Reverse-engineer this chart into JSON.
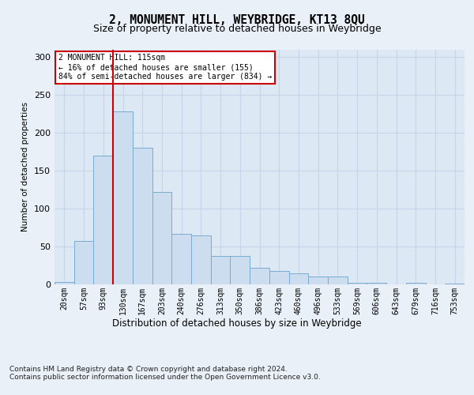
{
  "title": "2, MONUMENT HILL, WEYBRIDGE, KT13 8QU",
  "subtitle": "Size of property relative to detached houses in Weybridge",
  "xlabel": "Distribution of detached houses by size in Weybridge",
  "ylabel": "Number of detached properties",
  "bar_labels": [
    "20sqm",
    "57sqm",
    "93sqm",
    "130sqm",
    "167sqm",
    "203sqm",
    "240sqm",
    "276sqm",
    "313sqm",
    "350sqm",
    "386sqm",
    "423sqm",
    "460sqm",
    "496sqm",
    "533sqm",
    "569sqm",
    "606sqm",
    "643sqm",
    "679sqm",
    "716sqm",
    "753sqm"
  ],
  "bar_values": [
    3,
    57,
    170,
    228,
    180,
    122,
    67,
    65,
    38,
    38,
    22,
    18,
    15,
    10,
    10,
    2,
    2,
    0,
    2,
    0,
    1
  ],
  "bar_color": "#ccddf0",
  "bar_edge_color": "#7aabcf",
  "red_line_x": 2.5,
  "annotation_text": "2 MONUMENT HILL: 115sqm\n← 16% of detached houses are smaller (155)\n84% of semi-detached houses are larger (834) →",
  "annotation_box_facecolor": "#ffffff",
  "annotation_box_edgecolor": "#cc0000",
  "red_line_color": "#cc0000",
  "grid_color": "#c8d4e8",
  "fig_bg_color": "#eaf0f8",
  "plot_bg_color": "#dce8f4",
  "footer_text": "Contains HM Land Registry data © Crown copyright and database right 2024.\nContains public sector information licensed under the Open Government Licence v3.0.",
  "ylim_max": 310,
  "yticks": [
    0,
    50,
    100,
    150,
    200,
    250,
    300
  ]
}
